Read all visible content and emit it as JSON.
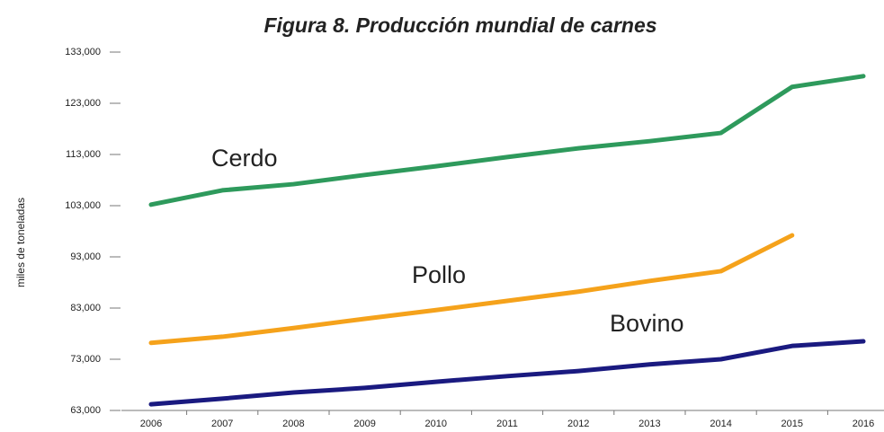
{
  "chart_data": {
    "type": "line",
    "title": "Figura 8. Producción mundial de carnes",
    "y_label": "miles de toneladas",
    "categories": [
      "2006",
      "2007",
      "2008",
      "2009",
      "2010",
      "2011",
      "2012",
      "2013",
      "2014",
      "2015",
      "2016"
    ],
    "series": [
      {
        "name": "Cerdo",
        "color": "#2e9a5c",
        "values": [
          103200,
          106000,
          107200,
          109000,
          110700,
          112500,
          114200,
          115600,
          117200,
          126200,
          128300
        ]
      },
      {
        "name": "Pollo",
        "color": "#f5a21b",
        "values": [
          76200,
          77400,
          79100,
          80900,
          82600,
          84400,
          86200,
          88300,
          90200,
          97200,
          null
        ]
      },
      {
        "name": "Bovino",
        "color": "#1a1a80",
        "values": [
          64200,
          65300,
          66500,
          67400,
          68600,
          69700,
          70700,
          72000,
          73000,
          75600,
          76500
        ]
      }
    ],
    "ylim": [
      63000,
      133000
    ],
    "yticks": [
      {
        "value": 63000,
        "label": "63,000"
      },
      {
        "value": 73000,
        "label": "73,000"
      },
      {
        "value": 83000,
        "label": "83,000"
      },
      {
        "value": 93000,
        "label": "93,000"
      },
      {
        "value": 103000,
        "label": "103,000"
      },
      {
        "value": 113000,
        "label": "113,000"
      },
      {
        "value": 123000,
        "label": "123,000"
      },
      {
        "value": 133000,
        "label": "133,000"
      }
    ],
    "grid": false
  }
}
